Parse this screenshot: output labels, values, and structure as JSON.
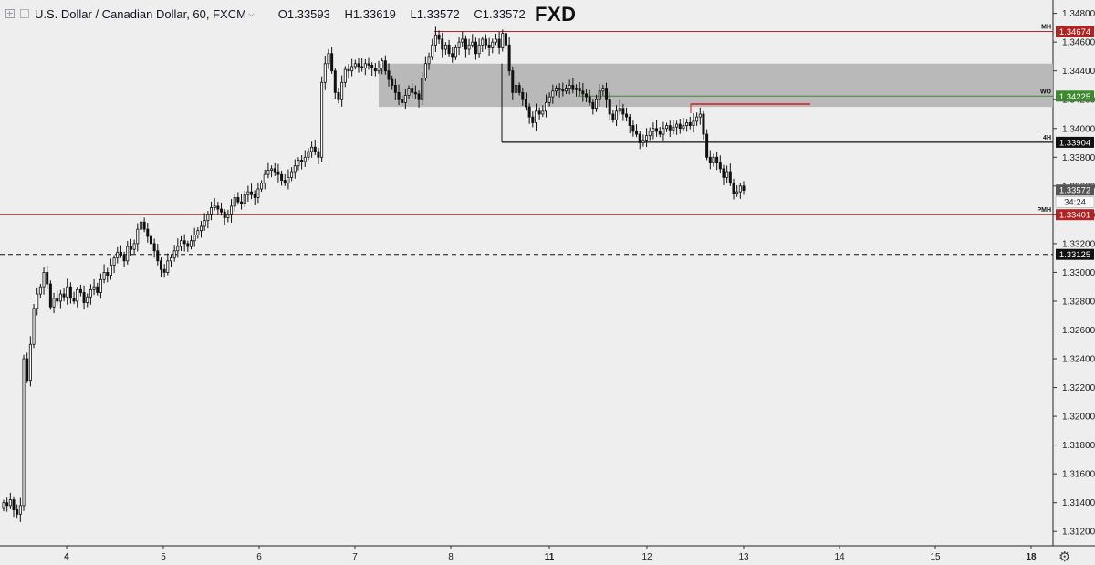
{
  "header": {
    "symbol": "U.S. Dollar / Canadian Dollar, 60, FXCM",
    "open": "O1.33593",
    "high": "H1.33619",
    "low": "L1.33572",
    "close": "C1.33572",
    "brand": "FXD"
  },
  "colors": {
    "background": "#eeeeee",
    "candle_up": "#ffffff",
    "candle_down": "#111111",
    "red_level": "#b22222",
    "green_level": "#3c8a2e",
    "zone": "#b3b3b3",
    "black_level": "#111111"
  },
  "icons": [
    "expand-icon",
    "chevron-down-icon",
    "settings-gear-icon"
  ],
  "chart_data": {
    "type": "candlestick",
    "x_tick_labels": [
      "4",
      "5",
      "6",
      "7",
      "8",
      "11",
      "12",
      "13",
      "14",
      "15",
      "18"
    ],
    "y_tick_labels": [
      "1.34800",
      "1.34600",
      "1.34400",
      "1.34200",
      "1.34000",
      "1.33800",
      "1.33600",
      "1.33400",
      "1.33200",
      "1.33000",
      "1.32800",
      "1.32600",
      "1.32400",
      "1.32200",
      "1.32000",
      "1.31800",
      "1.31600",
      "1.31400",
      "1.31200"
    ],
    "ylim": [
      1.311,
      1.3488
    ],
    "levels": [
      {
        "label": "MH",
        "value": 1.34674,
        "color": "#b22222",
        "style": "solid"
      },
      {
        "label": "WO",
        "value": 1.34225,
        "color": "#3c8a2e",
        "style": "solid"
      },
      {
        "label": "4H",
        "value": 1.33904,
        "color": "#111111",
        "style": "solid"
      },
      {
        "label": "PMH",
        "value": 1.33401,
        "color": "#b22222",
        "style": "solid"
      },
      {
        "label": "",
        "value": 1.33125,
        "color": "#111111",
        "style": "dashed"
      }
    ],
    "current_price": {
      "value": 1.33572,
      "text": "1.33572",
      "countdown": "34:24"
    },
    "zone": {
      "from": "7 (afternoon)",
      "to": "extends right",
      "low": 1.3415,
      "high": 1.3445
    },
    "short_red_line": {
      "value": 1.3417
    },
    "close_series": [
      1.314,
      1.3138,
      1.3142,
      1.3135,
      1.3132,
      1.3138,
      1.324,
      1.3225,
      1.325,
      1.3275,
      1.3285,
      1.329,
      1.33,
      1.3292,
      1.3276,
      1.3282,
      1.328,
      1.3285,
      1.3283,
      1.329,
      1.3282,
      1.328,
      1.3288,
      1.3286,
      1.3279,
      1.3283,
      1.3288,
      1.329,
      1.3286,
      1.3295,
      1.33,
      1.3298,
      1.3305,
      1.331,
      1.3314,
      1.3312,
      1.3308,
      1.3318,
      1.3316,
      1.332,
      1.333,
      1.3335,
      1.333,
      1.3325,
      1.332,
      1.3315,
      1.3308,
      1.3302,
      1.33,
      1.3308,
      1.331,
      1.3315,
      1.3318,
      1.3322,
      1.332,
      1.3318,
      1.3322,
      1.3326,
      1.3329,
      1.3332,
      1.3336,
      1.334,
      1.3345,
      1.3346,
      1.3344,
      1.3342,
      1.3338,
      1.334,
      1.3346,
      1.3352,
      1.3349,
      1.3348,
      1.3354,
      1.3356,
      1.3354,
      1.3352,
      1.3358,
      1.3362,
      1.3368,
      1.3371,
      1.3372,
      1.337,
      1.3368,
      1.3364,
      1.3362,
      1.3366,
      1.337,
      1.3374,
      1.3378,
      1.3377,
      1.338,
      1.3384,
      1.3387,
      1.3384,
      1.338,
      1.3432,
      1.3445,
      1.3452,
      1.344,
      1.3425,
      1.342,
      1.3432,
      1.3441,
      1.344,
      1.3443,
      1.3445,
      1.3443,
      1.3442,
      1.3445,
      1.3444,
      1.3442,
      1.344,
      1.3442,
      1.3447,
      1.344,
      1.3434,
      1.343,
      1.3425,
      1.342,
      1.3418,
      1.3423,
      1.3428,
      1.3425,
      1.3424,
      1.342,
      1.3435,
      1.3445,
      1.345,
      1.3458,
      1.3465,
      1.3462,
      1.3455,
      1.3458,
      1.3452,
      1.345,
      1.3456,
      1.346,
      1.3462,
      1.3455,
      1.3458,
      1.346,
      1.3452,
      1.3458,
      1.3462,
      1.3458,
      1.3456,
      1.346,
      1.3462,
      1.3456,
      1.3466,
      1.3458,
      1.344,
      1.3425,
      1.343,
      1.3425,
      1.342,
      1.3415,
      1.3408,
      1.3404,
      1.3412,
      1.341,
      1.3412,
      1.3418,
      1.3422,
      1.3426,
      1.3428,
      1.3427,
      1.3426,
      1.3428,
      1.343,
      1.3427,
      1.3428,
      1.3426,
      1.3424,
      1.3422,
      1.3418,
      1.3414,
      1.342,
      1.3426,
      1.3428,
      1.342,
      1.341,
      1.3406,
      1.3412,
      1.3414,
      1.341,
      1.3408,
      1.3402,
      1.3398,
      1.3396,
      1.339,
      1.3392,
      1.3395,
      1.3398,
      1.34,
      1.3398,
      1.3396,
      1.34,
      1.3402,
      1.3399,
      1.3401,
      1.3403,
      1.34,
      1.3402,
      1.3404,
      1.3402,
      1.3405,
      1.3408,
      1.341,
      1.3396,
      1.338,
      1.3376,
      1.338,
      1.3376,
      1.3372,
      1.3366,
      1.337,
      1.3362,
      1.3355,
      1.3356,
      1.336,
      1.3357
    ]
  }
}
